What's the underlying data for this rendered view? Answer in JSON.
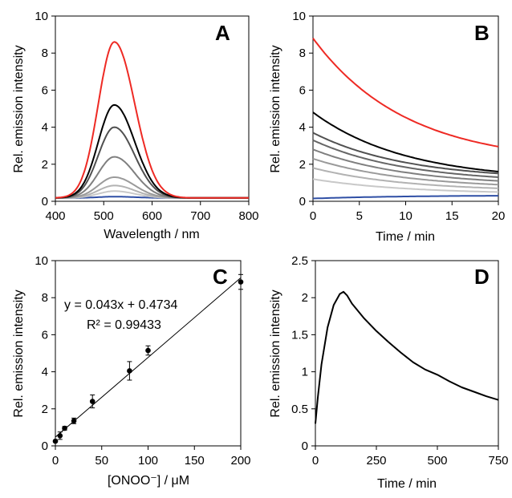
{
  "chart_data": [
    {
      "panel": "A",
      "type": "line",
      "xlabel": "Wavelength / nm",
      "ylabel": "Rel. emission intensity",
      "xlim": [
        400,
        800
      ],
      "ylim": [
        0,
        10
      ],
      "xticks": [
        "400",
        "500",
        "600",
        "700",
        "800"
      ],
      "yticks": [
        "0",
        "2",
        "4",
        "6",
        "8",
        "10"
      ],
      "grid": false,
      "legend": "none",
      "spectrum_shape": {
        "peak_nm": 522,
        "sigma_left_nm": 33,
        "sigma_right_nm": 42,
        "baseline": 0.18
      },
      "series": [
        {
          "peak": 0.25,
          "color": "#2f4fa5"
        },
        {
          "peak": 0.55,
          "color": "#c8c8c8"
        },
        {
          "peak": 0.85,
          "color": "#b2b2b2"
        },
        {
          "peak": 1.3,
          "color": "#9a9a9a"
        },
        {
          "peak": 2.4,
          "color": "#7f7f7f"
        },
        {
          "peak": 4.0,
          "color": "#505050"
        },
        {
          "peak": 5.2,
          "color": "#000000"
        },
        {
          "peak": 8.6,
          "color": "#ee2a24"
        }
      ]
    },
    {
      "panel": "B",
      "type": "line",
      "xlabel": "Time / min",
      "ylabel": "Rel. emission intensity",
      "xlim": [
        0,
        20
      ],
      "ylim": [
        0,
        10
      ],
      "xticks": [
        "0",
        "5",
        "10",
        "15",
        "20"
      ],
      "yticks": [
        "0",
        "2",
        "4",
        "6",
        "8",
        "10"
      ],
      "grid": false,
      "legend": "none",
      "series": [
        {
          "start": 8.8,
          "end": 2.95,
          "color": "#ee2a24"
        },
        {
          "start": 4.8,
          "end": 1.6,
          "color": "#000000"
        },
        {
          "start": 3.7,
          "end": 1.5,
          "color": "#505050"
        },
        {
          "start": 3.3,
          "end": 1.3,
          "color": "#666666"
        },
        {
          "start": 2.8,
          "end": 1.1,
          "color": "#7f7f7f"
        },
        {
          "start": 2.3,
          "end": 0.9,
          "color": "#9a9a9a"
        },
        {
          "start": 1.8,
          "end": 0.7,
          "color": "#b2b2b2"
        },
        {
          "start": 1.2,
          "end": 0.5,
          "color": "#c8c8c8"
        },
        {
          "start": 0.15,
          "end": 0.3,
          "color": "#2f4fa5"
        }
      ]
    },
    {
      "panel": "C",
      "type": "scatter",
      "xlabel": "[ONOO⁻] / μM",
      "ylabel": "Rel. emission intensity",
      "xlim": [
        0,
        200
      ],
      "ylim": [
        0,
        10
      ],
      "xticks": [
        "0",
        "50",
        "100",
        "150",
        "200"
      ],
      "yticks": [
        "0",
        "2",
        "4",
        "6",
        "8",
        "10"
      ],
      "grid": false,
      "legend": "none",
      "points": [
        {
          "x": 0,
          "y": 0.25,
          "err": 0.05
        },
        {
          "x": 5,
          "y": 0.55,
          "err": 0.2
        },
        {
          "x": 10,
          "y": 0.95,
          "err": 0.1
        },
        {
          "x": 20,
          "y": 1.35,
          "err": 0.15
        },
        {
          "x": 40,
          "y": 2.4,
          "err": 0.35
        },
        {
          "x": 80,
          "y": 4.05,
          "err": 0.5
        },
        {
          "x": 100,
          "y": 5.15,
          "err": 0.25
        },
        {
          "x": 200,
          "y": 8.85,
          "err": 0.4
        }
      ],
      "fit": {
        "slope": 0.043,
        "intercept": 0.4734
      },
      "equation": "y = 0.043x + 0.4734",
      "r2": "R² = 0.99433"
    },
    {
      "panel": "D",
      "type": "line",
      "xlabel": "Time / min",
      "ylabel": "Rel. emission intensity",
      "xlim": [
        0,
        750
      ],
      "ylim": [
        0,
        2.5
      ],
      "xticks": [
        "0",
        "250",
        "500",
        "750"
      ],
      "yticks": [
        "0",
        "0.5",
        "1",
        "1.5",
        "2",
        "2.5"
      ],
      "grid": false,
      "legend": "none",
      "series": [
        {
          "color": "#000000",
          "x": [
            0,
            10,
            25,
            50,
            75,
            100,
            115,
            130,
            150,
            200,
            250,
            300,
            350,
            400,
            450,
            500,
            550,
            600,
            650,
            700,
            750
          ],
          "y": [
            0.3,
            0.65,
            1.1,
            1.6,
            1.9,
            2.05,
            2.08,
            2.03,
            1.92,
            1.72,
            1.55,
            1.4,
            1.26,
            1.13,
            1.03,
            0.96,
            0.87,
            0.79,
            0.73,
            0.67,
            0.62
          ]
        }
      ]
    }
  ]
}
